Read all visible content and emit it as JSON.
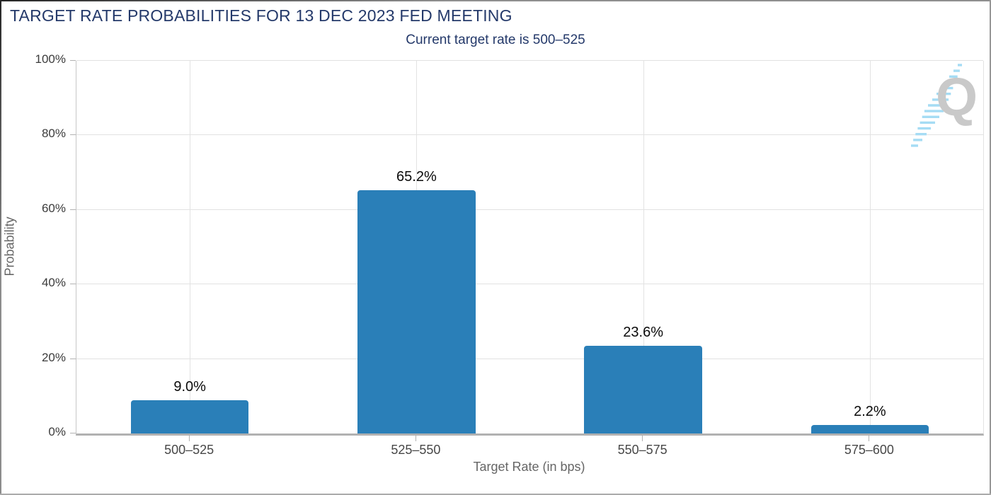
{
  "header": {
    "title": "TARGET RATE PROBABILITIES FOR 13 DEC 2023 FED MEETING",
    "subtitle": "Current target rate is 500–525"
  },
  "chart_data": {
    "type": "bar",
    "title": "TARGET RATE PROBABILITIES FOR 13 DEC 2023 FED MEETING",
    "subtitle": "Current target rate is 500–525",
    "categories": [
      "500–525",
      "525–550",
      "550–575",
      "575–600"
    ],
    "values": [
      9.0,
      65.2,
      23.6,
      2.2
    ],
    "value_labels": [
      "9.0%",
      "65.2%",
      "23.6%",
      "2.2%"
    ],
    "xlabel": "Target Rate (in bps)",
    "ylabel": "Probability",
    "ylim": [
      0,
      100
    ],
    "yticks": [
      0,
      20,
      40,
      60,
      80,
      100
    ],
    "ytick_labels": [
      "0%",
      "20%",
      "40%",
      "60%",
      "80%",
      "100%"
    ],
    "grid": true,
    "legend": "none",
    "bar_color": "#2a7fb8"
  },
  "watermark": {
    "letter": "Q",
    "hatch_color": "#a5dcf4",
    "letter_color": "#c9c9c9"
  },
  "colors": {
    "title_navy": "#24396a",
    "bar_blue": "#2a7fb8",
    "gridline": "#e2e2e2",
    "axis_line": "#b1b1b1"
  }
}
